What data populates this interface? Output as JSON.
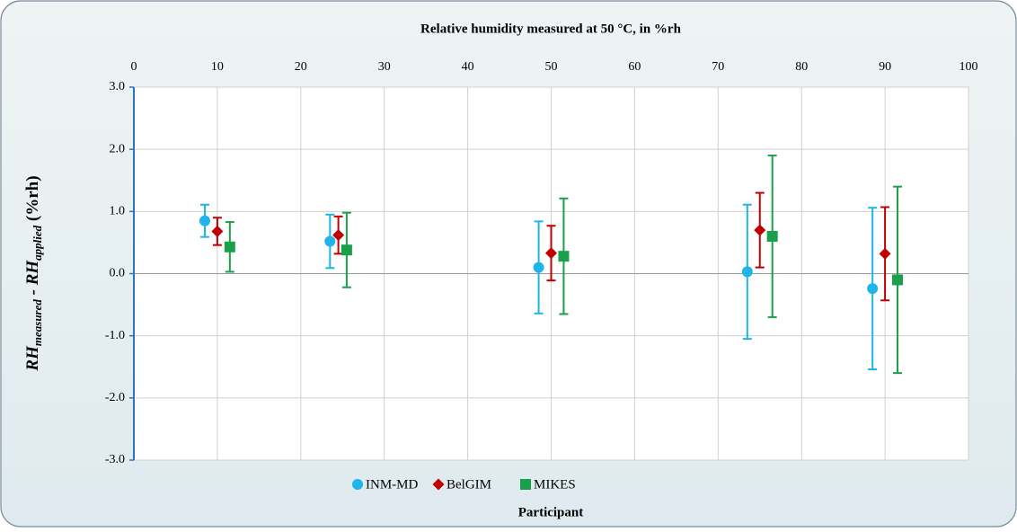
{
  "chart_data": {
    "type": "errorbar",
    "x_label": "Relative humidity  measured at 50 °C, in %rh",
    "y_label": [
      "RH",
      "measured",
      " - RH",
      "applied",
      " (%rh)"
    ],
    "bottom_label": "Participant",
    "xlim": [
      0,
      100
    ],
    "xticks": [
      0,
      10,
      20,
      30,
      40,
      50,
      60,
      70,
      80,
      90,
      100
    ],
    "ylim": [
      -3,
      3
    ],
    "yticks": [
      {
        "value": -3,
        "label": "-3.0"
      },
      {
        "value": -2,
        "label": "-2.0"
      },
      {
        "value": -1,
        "label": "-1.0"
      },
      {
        "value": 0,
        "label": "0.0"
      },
      {
        "value": 1,
        "label": "1.0"
      },
      {
        "value": 2,
        "label": "2.0"
      },
      {
        "value": 3,
        "label": "3.0"
      }
    ],
    "grid": true,
    "legend": "bottom",
    "series": [
      {
        "name": "INM-MD",
        "color": "#1fb4ea",
        "marker": "circle",
        "x": [
          8.5,
          23.5,
          48.5,
          73.5,
          88.5
        ],
        "values": [
          0.85,
          0.52,
          0.1,
          0.03,
          -0.24
        ],
        "errors": [
          0.26,
          0.43,
          0.74,
          1.08,
          1.3
        ]
      },
      {
        "name": "BelGIM",
        "color": "#c00000",
        "marker": "diamond",
        "x": [
          10,
          24.5,
          50,
          75,
          90
        ],
        "values": [
          0.68,
          0.62,
          0.33,
          0.7,
          0.32
        ],
        "errors": [
          0.22,
          0.3,
          0.44,
          0.6,
          0.75
        ]
      },
      {
        "name": "MIKES",
        "color": "#1aa04a",
        "marker": "square",
        "x": [
          11.5,
          25.5,
          51.5,
          76.5,
          91.5
        ],
        "values": [
          0.43,
          0.38,
          0.28,
          0.6,
          -0.1
        ],
        "errors": [
          0.4,
          0.6,
          0.93,
          1.3,
          1.5
        ]
      }
    ]
  }
}
